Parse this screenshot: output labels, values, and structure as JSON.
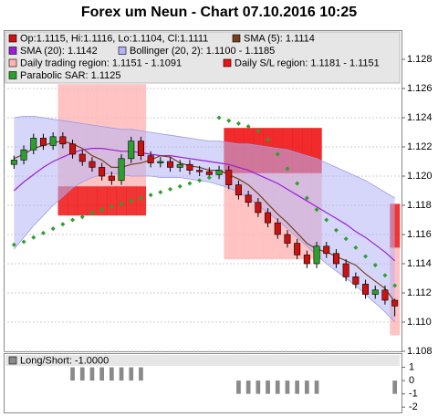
{
  "chart_data": [
    {
      "type": "candlestick",
      "title": "Forex um Neun - Chart 07.10.2016 10:25",
      "ylim": [
        1.108,
        1.13
      ],
      "yticks": [
        1.108,
        {
          "value": 1.11,
          "label": "1.110"
        },
        1.112,
        1.114,
        1.116,
        1.118,
        {
          "value": 1.12,
          "label": "1.120"
        },
        1.122,
        1.124,
        1.126,
        1.128
      ],
      "grid": true,
      "up_color": "#2ca02c",
      "down_color": "#cc1111",
      "open": [
        1.1208,
        1.1211,
        1.1218,
        1.1226,
        1.1221,
        1.1227,
        1.1222,
        1.1215,
        1.121,
        1.1206,
        1.12,
        1.1197,
        1.1212,
        1.1224,
        1.1214,
        1.1209,
        1.121,
        1.1206,
        1.1208,
        1.1204,
        1.1203,
        1.1201,
        1.1204,
        1.1194,
        1.1187,
        1.1182,
        1.1175,
        1.1168,
        1.116,
        1.1154,
        1.1146,
        1.114,
        1.1152,
        1.1147,
        1.114,
        1.1131,
        1.1126,
        1.1119,
        1.1122,
        1.1115
      ],
      "high": [
        1.1214,
        1.1221,
        1.1229,
        1.1229,
        1.123,
        1.123,
        1.1225,
        1.1218,
        1.1213,
        1.1209,
        1.1203,
        1.1215,
        1.1227,
        1.1227,
        1.1217,
        1.1213,
        1.1213,
        1.1211,
        1.1211,
        1.1207,
        1.1206,
        1.1207,
        1.1207,
        1.1197,
        1.119,
        1.1185,
        1.1178,
        1.1171,
        1.1163,
        1.1157,
        1.1149,
        1.1155,
        1.1155,
        1.115,
        1.1143,
        1.1134,
        1.1129,
        1.1125,
        1.1125,
        1.1116
      ],
      "low": [
        1.1205,
        1.1208,
        1.1215,
        1.1218,
        1.1218,
        1.1219,
        1.1212,
        1.1207,
        1.1203,
        1.1197,
        1.1194,
        1.1194,
        1.1209,
        1.1211,
        1.1206,
        1.1206,
        1.1203,
        1.1203,
        1.1201,
        1.12,
        1.1198,
        1.1198,
        1.1191,
        1.1184,
        1.1179,
        1.1172,
        1.1165,
        1.1157,
        1.1151,
        1.1143,
        1.1137,
        1.1137,
        1.1144,
        1.1137,
        1.1128,
        1.1123,
        1.1116,
        1.1116,
        1.1112,
        1.1104
      ],
      "close": [
        1.1211,
        1.1218,
        1.1226,
        1.1221,
        1.1227,
        1.1222,
        1.1215,
        1.121,
        1.1206,
        1.12,
        1.1197,
        1.1212,
        1.1224,
        1.1214,
        1.1209,
        1.121,
        1.1206,
        1.1208,
        1.1204,
        1.1203,
        1.1201,
        1.1204,
        1.1194,
        1.1187,
        1.1182,
        1.1175,
        1.1168,
        1.116,
        1.1154,
        1.1146,
        1.114,
        1.1152,
        1.1147,
        1.114,
        1.1131,
        1.1126,
        1.1119,
        1.1122,
        1.1115,
        1.1111
      ],
      "sma5": {
        "color": "#7b3f1a",
        "values": [
          1.1212,
          1.1215,
          1.1219,
          1.1221,
          1.1223,
          1.1224,
          1.1222,
          1.1219,
          1.1214,
          1.1211,
          1.1206,
          1.1206,
          1.1208,
          1.1209,
          1.1211,
          1.1214,
          1.1213,
          1.1209,
          1.1207,
          1.1206,
          1.1204,
          1.1204,
          1.1201,
          1.1198,
          1.1194,
          1.1188,
          1.1181,
          1.1174,
          1.1168,
          1.1161,
          1.1154,
          1.115,
          1.1148,
          1.1145,
          1.1142,
          1.1139,
          1.1133,
          1.1128,
          1.1123,
          1.1114
        ]
      },
      "sma20": {
        "color": "#9b1fd6",
        "values": [
          1.119,
          1.1196,
          1.1201,
          1.1206,
          1.121,
          1.1213,
          1.1216,
          1.1218,
          1.1219,
          1.1219,
          1.1218,
          1.1217,
          1.1217,
          1.1216,
          1.1215,
          1.1214,
          1.1214,
          1.1213,
          1.1212,
          1.1211,
          1.121,
          1.1209,
          1.1208,
          1.1206,
          1.1204,
          1.1201,
          1.1198,
          1.1195,
          1.1191,
          1.1187,
          1.1183,
          1.1179,
          1.1175,
          1.1171,
          1.1167,
          1.1162,
          1.1158,
          1.1153,
          1.1148,
          1.1142
        ]
      },
      "bollinger": {
        "color": "#b4b4f5",
        "upper": [
          1.124,
          1.1241,
          1.1241,
          1.124,
          1.1239,
          1.1238,
          1.1237,
          1.1236,
          1.1235,
          1.1234,
          1.1233,
          1.1232,
          1.1232,
          1.1231,
          1.123,
          1.1229,
          1.1228,
          1.1227,
          1.1226,
          1.1225,
          1.1224,
          1.1224,
          1.1223,
          1.1222,
          1.1222,
          1.1221,
          1.122,
          1.1219,
          1.1218,
          1.1216,
          1.1214,
          1.1212,
          1.1209,
          1.1206,
          1.1203,
          1.12,
          1.1197,
          1.1193,
          1.1189,
          1.1185
        ],
        "lower": [
          1.115,
          1.1158,
          1.1166,
          1.1173,
          1.118,
          1.1186,
          1.1192,
          1.1196,
          1.1199,
          1.1201,
          1.1202,
          1.1201,
          1.12,
          1.12,
          1.12,
          1.1199,
          1.1199,
          1.1199,
          1.1198,
          1.1197,
          1.1196,
          1.1194,
          1.1192,
          1.1189,
          1.1185,
          1.118,
          1.1175,
          1.117,
          1.1164,
          1.1158,
          1.1152,
          1.1146,
          1.114,
          1.1135,
          1.113,
          1.1125,
          1.1119,
          1.1113,
          1.1107,
          1.11
        ]
      },
      "sar": {
        "color": "#2ca02c",
        "values": [
          1.1153,
          1.1155,
          1.1158,
          1.1161,
          1.1164,
          1.1167,
          1.117,
          1.1172,
          1.1175,
          1.1177,
          1.1179,
          1.1181,
          1.1183,
          1.1185,
          1.1187,
          1.1189,
          1.1191,
          1.1193,
          1.1195,
          1.1197,
          1.1199,
          1.124,
          1.1238,
          1.1236,
          1.1234,
          1.1231,
          1.1225,
          1.1215,
          1.1205,
          1.1195,
          1.1185,
          1.1177,
          1.117,
          1.1163,
          1.1157,
          1.1151,
          1.1145,
          1.1139,
          1.1132,
          1.1125
        ]
      },
      "trading_region": {
        "color": "#ffb4b4",
        "high": [
          null,
          null,
          null,
          null,
          null,
          1.1263,
          1.1263,
          1.1263,
          1.1263,
          1.1263,
          1.1263,
          1.1263,
          1.1263,
          1.1263,
          null,
          null,
          null,
          null,
          null,
          null,
          null,
          null,
          1.1233,
          1.1233,
          1.1233,
          1.1233,
          1.1233,
          1.1233,
          1.1233,
          1.1233,
          1.1233,
          1.1233,
          null,
          null,
          null,
          null,
          null,
          null,
          null,
          1.1151
        ],
        "low": [
          null,
          null,
          null,
          null,
          null,
          1.1193,
          1.1193,
          1.1193,
          1.1193,
          1.1193,
          1.1193,
          1.1193,
          1.1193,
          1.1193,
          null,
          null,
          null,
          null,
          null,
          null,
          null,
          null,
          1.1143,
          1.1143,
          1.1143,
          1.1143,
          1.1143,
          1.1143,
          1.1143,
          1.1143,
          1.1143,
          1.1143,
          null,
          null,
          null,
          null,
          null,
          null,
          null,
          1.1091
        ]
      },
      "sl_region": {
        "color": "#ee1111",
        "high": [
          null,
          null,
          null,
          null,
          null,
          1.1193,
          1.1193,
          1.1193,
          1.1193,
          1.1193,
          1.1193,
          1.1193,
          1.1193,
          1.1193,
          null,
          null,
          null,
          null,
          null,
          null,
          null,
          null,
          1.1233,
          1.1233,
          1.1233,
          1.1233,
          1.1233,
          1.1233,
          1.1233,
          1.1233,
          1.1233,
          1.1233,
          null,
          null,
          null,
          null,
          null,
          null,
          null,
          1.1181
        ],
        "low": [
          null,
          null,
          null,
          null,
          null,
          1.1173,
          1.1173,
          1.1173,
          1.1173,
          1.1173,
          1.1173,
          1.1173,
          1.1173,
          1.1173,
          null,
          null,
          null,
          null,
          null,
          null,
          null,
          null,
          1.1202,
          1.1202,
          1.1202,
          1.1202,
          1.1202,
          1.1202,
          1.1202,
          1.1202,
          1.1202,
          1.1202,
          null,
          null,
          null,
          null,
          null,
          null,
          null,
          1.1151
        ]
      },
      "legend": [
        {
          "label": "Op:1.1115, Hi:1.1116, Lo:1.1104, Cl:1.1111",
          "color": "#cc1111"
        },
        {
          "label": "SMA (5): 1.1114",
          "color": "#7b3f1a"
        },
        {
          "label": "SMA (20): 1.1142",
          "color": "#9b1fd6"
        },
        {
          "label": "Bollinger (20, 2): 1.1100 - 1.1185",
          "color": "#b4b4f5"
        },
        {
          "label": "Daily trading region: 1.1151 - 1.1091",
          "color": "#ffb4b4"
        },
        {
          "label": "Daily S/L region: 1.1181 - 1.1151",
          "color": "#ee1111"
        },
        {
          "label": "Parabolic SAR: 1.1125",
          "color": "#2ca02c"
        }
      ]
    },
    {
      "type": "bar",
      "label": "Long/Short: -1.0000",
      "color": "#8a8a8a",
      "ylim": [
        -2.4,
        2
      ],
      "yticks": [
        1,
        0,
        -1,
        -2
      ],
      "values": [
        0,
        0,
        0,
        0,
        0,
        0,
        1,
        1,
        1,
        1,
        1,
        1,
        1,
        1,
        0,
        0,
        0,
        0,
        0,
        0,
        0,
        0,
        0,
        -1,
        -1,
        -1,
        -1,
        -1,
        -1,
        -1,
        -1,
        -1,
        0,
        0,
        0,
        0,
        0,
        0,
        0,
        -1
      ]
    }
  ]
}
